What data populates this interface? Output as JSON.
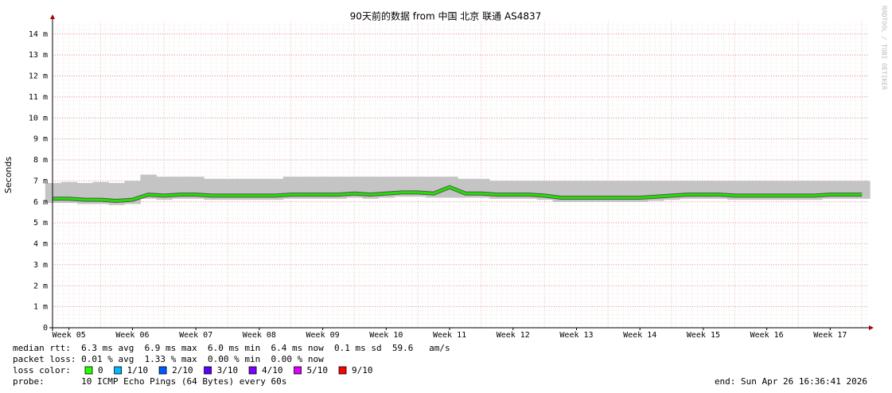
{
  "chart_data": {
    "type": "line",
    "title": "90天前的数据 from  中国 北京 联通 AS4837",
    "y_label": "Seconds",
    "watermark": "RRDTOOL / TOBI OETIKER",
    "x": [
      4.75,
      5,
      5.25,
      5.5,
      5.75,
      6,
      6.25,
      6.5,
      6.75,
      7,
      7.25,
      7.5,
      7.75,
      8,
      8.25,
      8.5,
      8.75,
      9,
      9.25,
      9.5,
      9.75,
      10,
      10.25,
      10.5,
      10.75,
      11,
      11.25,
      11.5,
      11.75,
      12,
      12.25,
      12.5,
      12.75,
      13,
      13.25,
      13.5,
      13.75,
      14,
      14.25,
      14.5,
      14.75,
      15,
      15.25,
      15.5,
      15.75,
      16,
      16.25,
      16.5,
      16.75,
      17,
      17.25,
      17.5
    ],
    "xlim": [
      4.74,
      17.61
    ],
    "xticks": [
      {
        "value": 5,
        "label": "Week 05"
      },
      {
        "value": 6,
        "label": "Week 06"
      },
      {
        "value": 7,
        "label": "Week 07"
      },
      {
        "value": 8,
        "label": "Week 08"
      },
      {
        "value": 9,
        "label": "Week 09"
      },
      {
        "value": 10,
        "label": "Week 10"
      },
      {
        "value": 11,
        "label": "Week 11"
      },
      {
        "value": 12,
        "label": "Week 12"
      },
      {
        "value": 13,
        "label": "Week 13"
      },
      {
        "value": 14,
        "label": "Week 14"
      },
      {
        "value": 15,
        "label": "Week 15"
      },
      {
        "value": 16,
        "label": "Week 16"
      },
      {
        "value": 17,
        "label": "Week 17"
      }
    ],
    "ylim": [
      0,
      0.0146
    ],
    "yticks": [
      0,
      {
        "value": 0.001,
        "label": "1 m"
      },
      {
        "value": 0.002,
        "label": "2 m"
      },
      {
        "value": 0.003,
        "label": "3 m"
      },
      {
        "value": 0.004,
        "label": "4 m"
      },
      {
        "value": 0.005,
        "label": "5 m"
      },
      {
        "value": 0.006,
        "label": "6 m"
      },
      {
        "value": 0.007,
        "label": "7 m"
      },
      {
        "value": 0.008,
        "label": "8 m"
      },
      {
        "value": 0.009,
        "label": "9 m"
      },
      {
        "value": 0.01,
        "label": "10 m"
      },
      {
        "value": 0.011,
        "label": "11 m"
      },
      {
        "value": 0.012,
        "label": "12 m"
      },
      {
        "value": 0.013,
        "label": "13 m"
      },
      {
        "value": 0.014,
        "label": "14 m"
      }
    ],
    "grid": true,
    "series": [
      {
        "color": "#22e000",
        "values": [
          0.00615,
          0.00615,
          0.0061,
          0.0061,
          0.00605,
          0.0061,
          0.00635,
          0.0063,
          0.00635,
          0.00635,
          0.0063,
          0.0063,
          0.0063,
          0.0063,
          0.0063,
          0.00635,
          0.00635,
          0.00635,
          0.00635,
          0.0064,
          0.00635,
          0.0064,
          0.00645,
          0.00645,
          0.0064,
          0.0067,
          0.0064,
          0.0064,
          0.00635,
          0.00635,
          0.00635,
          0.0063,
          0.0062,
          0.0062,
          0.0062,
          0.0062,
          0.0062,
          0.0062,
          0.00625,
          0.0063,
          0.00635,
          0.00635,
          0.00635,
          0.0063,
          0.0063,
          0.0063,
          0.0063,
          0.0063,
          0.0063,
          0.00635,
          0.00635,
          0.00635
        ]
      },
      {
        "color": "#c4c4c4",
        "values": [
          0.0069,
          0.00695,
          0.0069,
          0.00695,
          0.0069,
          0.007,
          0.0073,
          0.0072,
          0.0072,
          0.0072,
          0.0071,
          0.0071,
          0.0071,
          0.0071,
          0.0071,
          0.0072,
          0.0072,
          0.0072,
          0.0072,
          0.0072,
          0.0072,
          0.0072,
          0.0072,
          0.0072,
          0.0072,
          0.0072,
          0.0071,
          0.0071,
          0.007,
          0.007,
          0.007,
          0.007,
          0.007,
          0.007,
          0.007,
          0.007,
          0.007,
          0.007,
          0.007,
          0.007,
          0.007,
          0.007,
          0.007,
          0.007,
          0.007,
          0.007,
          0.007,
          0.007,
          0.007,
          0.007,
          0.007,
          0.007
        ]
      },
      {
        "color": "#c4c4c4",
        "values": [
          0.00595,
          0.00595,
          0.0059,
          0.0059,
          0.00585,
          0.0059,
          0.00615,
          0.0061,
          0.00615,
          0.00615,
          0.0061,
          0.0061,
          0.0061,
          0.0061,
          0.0061,
          0.00615,
          0.00615,
          0.00615,
          0.00615,
          0.0062,
          0.00615,
          0.0062,
          0.00625,
          0.00625,
          0.0062,
          0.0062,
          0.0062,
          0.0062,
          0.00615,
          0.00615,
          0.00615,
          0.0061,
          0.006,
          0.006,
          0.006,
          0.006,
          0.006,
          0.006,
          0.00605,
          0.0061,
          0.00615,
          0.00615,
          0.00615,
          0.0061,
          0.0061,
          0.0061,
          0.0061,
          0.0061,
          0.0061,
          0.00615,
          0.00615,
          0.00615
        ]
      }
    ]
  },
  "footer": {
    "median_rtt": "median rtt:  6.3 ms avg  6.9 ms max  6.0 ms min  6.4 ms now  0.1 ms sd  59.6   am/s",
    "packet_loss": "packet loss: 0.01 % avg  1.33 % max  0.00 % min  0.00 % now",
    "loss_color_label": "loss color:",
    "loss_colors": [
      {
        "label": "0",
        "color": "#26ff00"
      },
      {
        "label": "1/10",
        "color": "#00b8ff"
      },
      {
        "label": "2/10",
        "color": "#0059ff"
      },
      {
        "label": "3/10",
        "color": "#5e00ff"
      },
      {
        "label": "4/10",
        "color": "#7e00ff"
      },
      {
        "label": "5/10",
        "color": "#dd00ff"
      },
      {
        "label": "9/10",
        "color": "#ff0000"
      }
    ],
    "probe": "probe:       10 ICMP Echo Pings (64 Bytes) every 60s",
    "end": "end: Sun Apr 26 16:36:41 2026"
  }
}
